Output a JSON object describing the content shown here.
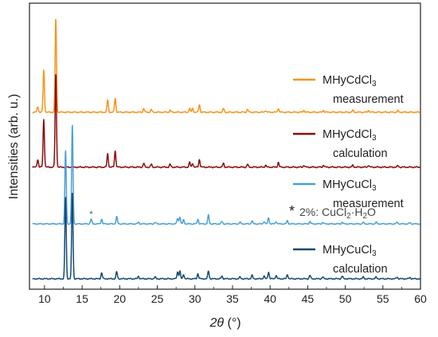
{
  "chart_data": {
    "type": "line",
    "xlabel_symbol": "2θ",
    "xlabel_unit": "(°)",
    "ylabel": "Intensities (arb. u.)",
    "xlim": [
      8,
      60
    ],
    "x_ticks": [
      10,
      15,
      20,
      25,
      30,
      35,
      40,
      45,
      50,
      55,
      60
    ],
    "y_ticks_shown": false,
    "note": {
      "star": "*",
      "text_pre": "2%: CuCl",
      "text_sub": "2",
      "text_post": "·H",
      "text_sub2": "2",
      "text_post2": "O",
      "marked_peak_x": 16.2
    },
    "series": [
      {
        "name_pre": "MHyCdCl",
        "name_sub": "3",
        "description": "measurement",
        "color": "#f7941d",
        "offset": 3.0,
        "peaks": [
          [
            9.1,
            0.06
          ],
          [
            9.9,
            0.45
          ],
          [
            11.5,
            1.0
          ],
          [
            18.4,
            0.13
          ],
          [
            19.4,
            0.15
          ],
          [
            23.2,
            0.04
          ],
          [
            24.2,
            0.03
          ],
          [
            26.7,
            0.02
          ],
          [
            29.3,
            0.04
          ],
          [
            29.7,
            0.04
          ],
          [
            30.6,
            0.08
          ],
          [
            33.8,
            0.04
          ],
          [
            37.0,
            0.03
          ],
          [
            39.4,
            0.02
          ],
          [
            41.1,
            0.04
          ],
          [
            44.5,
            0.02
          ],
          [
            47.1,
            0.02
          ],
          [
            51.0,
            0.02
          ],
          [
            53.1,
            0.02
          ],
          [
            57.0,
            0.015
          ]
        ]
      },
      {
        "name_pre": "MHyCdCl",
        "name_sub": "3",
        "description": "calculation",
        "color": "#8b0d0d",
        "offset": 2.0,
        "peaks": [
          [
            9.1,
            0.08
          ],
          [
            9.9,
            0.5
          ],
          [
            11.5,
            0.97
          ],
          [
            18.4,
            0.14
          ],
          [
            19.4,
            0.17
          ],
          [
            23.2,
            0.04
          ],
          [
            24.2,
            0.03
          ],
          [
            26.7,
            0.03
          ],
          [
            29.3,
            0.05
          ],
          [
            29.7,
            0.04
          ],
          [
            30.6,
            0.08
          ],
          [
            33.8,
            0.04
          ],
          [
            37.0,
            0.03
          ],
          [
            39.4,
            0.02
          ],
          [
            41.1,
            0.05
          ],
          [
            44.5,
            0.02
          ],
          [
            47.1,
            0.02
          ],
          [
            51.0,
            0.02
          ],
          [
            53.1,
            0.02
          ],
          [
            57.0,
            0.015
          ]
        ]
      },
      {
        "name_pre": "MHyCuCl",
        "name_sub": "3",
        "description": "measurement",
        "color": "#4a9fd8",
        "offset": 1.0,
        "peaks": [
          [
            12.8,
            0.93
          ],
          [
            13.7,
            1.25
          ],
          [
            16.2,
            0.06
          ],
          [
            17.6,
            0.06
          ],
          [
            19.6,
            0.09
          ],
          [
            22.5,
            0.02
          ],
          [
            24.7,
            0.02
          ],
          [
            27.7,
            0.07
          ],
          [
            28.0,
            0.09
          ],
          [
            28.5,
            0.05
          ],
          [
            30.4,
            0.06
          ],
          [
            31.8,
            0.11
          ],
          [
            33.6,
            0.03
          ],
          [
            36.0,
            0.02
          ],
          [
            37.6,
            0.04
          ],
          [
            39.2,
            0.03
          ],
          [
            39.8,
            0.08
          ],
          [
            40.8,
            0.03
          ],
          [
            42.3,
            0.04
          ],
          [
            45.3,
            0.03
          ],
          [
            47.0,
            0.02
          ],
          [
            49.6,
            0.02
          ],
          [
            52.4,
            0.02
          ],
          [
            54.1,
            0.02
          ],
          [
            56.9,
            0.02
          ],
          [
            58.6,
            0.015
          ]
        ]
      },
      {
        "name_pre": "MHyCuCl",
        "name_sub": "3",
        "description": "calculation",
        "color": "#164a75",
        "offset": 0.0,
        "peaks": [
          [
            12.8,
            0.95
          ],
          [
            13.7,
            1.0
          ],
          [
            17.6,
            0.07
          ],
          [
            19.6,
            0.08
          ],
          [
            22.5,
            0.03
          ],
          [
            24.7,
            0.02
          ],
          [
            27.7,
            0.08
          ],
          [
            28.0,
            0.09
          ],
          [
            28.5,
            0.05
          ],
          [
            30.4,
            0.06
          ],
          [
            31.8,
            0.09
          ],
          [
            33.6,
            0.03
          ],
          [
            36.0,
            0.02
          ],
          [
            37.6,
            0.04
          ],
          [
            39.2,
            0.03
          ],
          [
            39.8,
            0.08
          ],
          [
            40.8,
            0.04
          ],
          [
            42.3,
            0.05
          ],
          [
            45.3,
            0.04
          ],
          [
            47.0,
            0.02
          ],
          [
            49.6,
            0.03
          ],
          [
            52.4,
            0.02
          ],
          [
            54.1,
            0.02
          ],
          [
            56.9,
            0.02
          ],
          [
            58.6,
            0.015
          ]
        ]
      }
    ]
  }
}
